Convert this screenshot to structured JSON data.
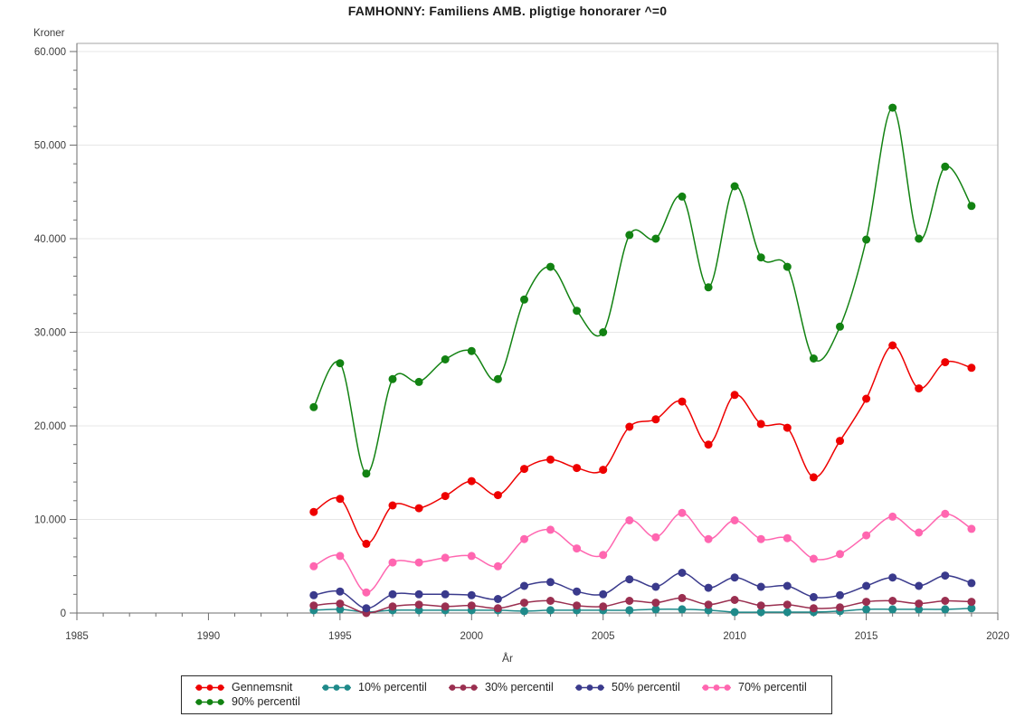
{
  "chart_data": {
    "type": "line",
    "title": "FAMHONNY: Familiens AMB. pligtige honorarer ^=0",
    "ylabel": "Kroner",
    "xlabel": "År",
    "xlim": [
      1985,
      2020
    ],
    "ylim": [
      0,
      60000
    ],
    "x_major_ticks": [
      1985,
      1990,
      1995,
      2000,
      2005,
      2010,
      2015,
      2020
    ],
    "x_minor_tick_step": 1,
    "y_major_ticks": [
      0,
      10000,
      20000,
      30000,
      40000,
      50000,
      60000
    ],
    "y_tick_labels": [
      "0",
      "10.000",
      "20.000",
      "30.000",
      "40.000",
      "50.000",
      "60.000"
    ],
    "y_minor_tick_step": 2000,
    "grid": "horizontal-major-only",
    "legend_position": "bottom",
    "marker": "filled-circle",
    "line_style": "smooth",
    "x": [
      1994,
      1995,
      1996,
      1997,
      1998,
      1999,
      2000,
      2001,
      2002,
      2003,
      2004,
      2005,
      2006,
      2007,
      2008,
      2009,
      2010,
      2011,
      2012,
      2013,
      2014,
      2015,
      2016,
      2017,
      2018,
      2019
    ],
    "series": [
      {
        "name": "Gennemsnit",
        "color": "#ee0000",
        "values": [
          10800,
          12200,
          7400,
          11500,
          11200,
          12500,
          14100,
          12600,
          15400,
          16400,
          15500,
          15300,
          19900,
          20700,
          22600,
          18000,
          23300,
          20200,
          19800,
          14500,
          18400,
          22900,
          28600,
          24000,
          26800,
          26200
        ]
      },
      {
        "name": "10% percentil",
        "color": "#1f8a8a",
        "values": [
          300,
          400,
          100,
          300,
          300,
          300,
          300,
          300,
          200,
          300,
          300,
          300,
          300,
          400,
          400,
          300,
          100,
          100,
          100,
          100,
          200,
          400,
          400,
          400,
          400,
          500
        ]
      },
      {
        "name": "30% percentil",
        "color": "#9a2f50",
        "values": [
          800,
          1000,
          0,
          700,
          900,
          700,
          800,
          500,
          1100,
          1300,
          800,
          700,
          1300,
          1100,
          1600,
          900,
          1400,
          800,
          900,
          500,
          600,
          1200,
          1300,
          1000,
          1300,
          1200
        ]
      },
      {
        "name": "50% percentil",
        "color": "#3a3a8c",
        "values": [
          1900,
          2300,
          500,
          2000,
          2000,
          2000,
          1900,
          1500,
          2900,
          3300,
          2300,
          2000,
          3600,
          2800,
          4300,
          2700,
          3800,
          2800,
          2900,
          1700,
          1900,
          2900,
          3800,
          2900,
          4000,
          3200
        ]
      },
      {
        "name": "70% percentil",
        "color": "#ff66b0",
        "values": [
          5000,
          6100,
          2200,
          5400,
          5400,
          5900,
          6100,
          5000,
          7900,
          8900,
          6900,
          6200,
          9900,
          8100,
          10700,
          7900,
          9900,
          7900,
          8000,
          5800,
          6300,
          8300,
          10300,
          8600,
          10600,
          9000
        ]
      },
      {
        "name": "90% percentil",
        "color": "#128212",
        "values": [
          22000,
          26700,
          14900,
          25000,
          24700,
          27100,
          28000,
          25000,
          33500,
          37000,
          32300,
          30000,
          40400,
          40000,
          44500,
          34800,
          45600,
          38000,
          37000,
          27200,
          30600,
          39900,
          54000,
          40000,
          47700,
          43500
        ]
      }
    ],
    "colors": {
      "grid": "#e7e7e7",
      "frame": "#a6a6a6",
      "axis": "#6e6e6e",
      "tick_label": "#3c3c3c"
    }
  }
}
